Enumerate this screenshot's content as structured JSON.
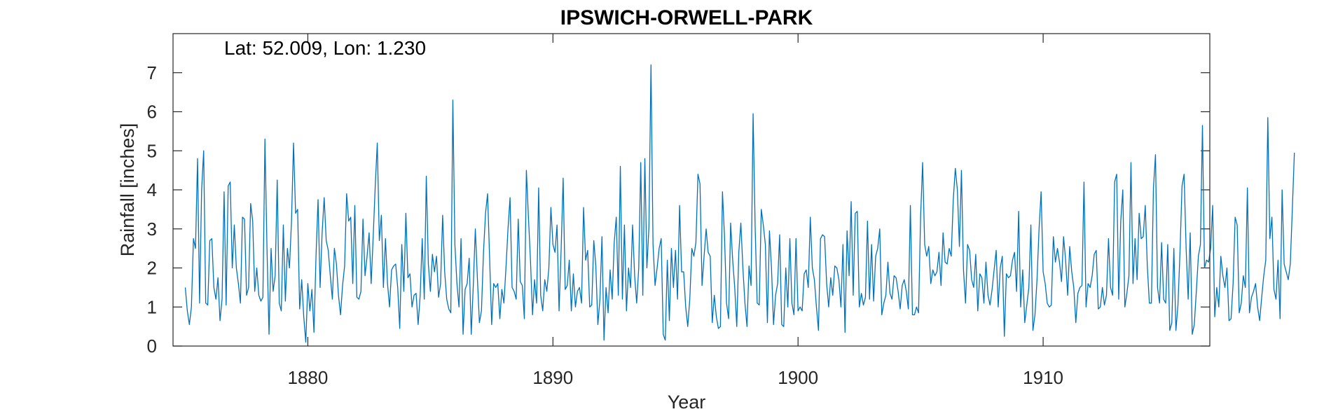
{
  "chart_data": {
    "type": "line",
    "title": "IPSWICH-ORWELL-PARK",
    "annotation": "Lat: 52.009, Lon: 1.230",
    "xlabel": "Year",
    "ylabel": "Rainfall [inches]",
    "xlim": [
      1874.5,
      1916.8
    ],
    "ylim": [
      0,
      8
    ],
    "xticks": [
      1880,
      1890,
      1900,
      1910
    ],
    "xtick_labels": [
      "1880",
      "1890",
      "1900",
      "1910"
    ],
    "yticks": [
      0,
      1,
      2,
      3,
      4,
      5,
      6,
      7
    ],
    "ytick_labels": [
      "0",
      "1",
      "2",
      "3",
      "4",
      "5",
      "6",
      "7"
    ],
    "grid": false,
    "box": true,
    "series": [
      {
        "color": "#0072BD",
        "x_start": 1875.0,
        "x_step": 0.0833333,
        "values": [
          1.5,
          0.9,
          0.55,
          1.0,
          2.75,
          2.5,
          4.8,
          1.1,
          4.0,
          5.0,
          1.1,
          1.05,
          2.7,
          2.75,
          1.5,
          1.2,
          1.75,
          0.65,
          1.2,
          3.95,
          1.05,
          4.1,
          4.2,
          2.0,
          3.1,
          2.0,
          1.6,
          1.1,
          3.3,
          3.25,
          1.3,
          1.5,
          3.65,
          3.2,
          1.4,
          2.0,
          1.3,
          1.15,
          1.25,
          5.3,
          2.5,
          0.3,
          2.5,
          1.4,
          1.8,
          4.25,
          1.1,
          0.9,
          3.1,
          1.15,
          2.5,
          2.0,
          3.2,
          5.2,
          3.4,
          3.5,
          0.95,
          1.7,
          0.75,
          0.1,
          1.6,
          0.9,
          1.45,
          0.35,
          2.3,
          3.75,
          1.5,
          2.9,
          3.8,
          2.7,
          2.45,
          1.8,
          1.2,
          2.5,
          2.1,
          1.3,
          0.8,
          1.55,
          2.05,
          3.9,
          3.2,
          3.3,
          1.6,
          3.6,
          1.25,
          1.2,
          1.4,
          3.25,
          1.8,
          2.3,
          2.9,
          1.6,
          2.8,
          4.1,
          5.2,
          2.7,
          3.35,
          1.5,
          2.75,
          1.6,
          1.0,
          1.95,
          2.05,
          2.1,
          1.5,
          0.45,
          2.6,
          1.4,
          3.4,
          1.75,
          1.85,
          1.0,
          1.3,
          1.35,
          0.55,
          1.3,
          2.75,
          1.2,
          4.35,
          2.1,
          1.4,
          2.35,
          1.9,
          2.3,
          1.25,
          1.6,
          3.35,
          1.9,
          1.2,
          0.95,
          0.85,
          6.3,
          2.6,
          1.6,
          1.0,
          2.75,
          0.3,
          1.45,
          1.6,
          2.25,
          0.3,
          1.55,
          3.0,
          1.75,
          0.6,
          0.9,
          2.4,
          3.4,
          3.9,
          2.25,
          0.55,
          1.6,
          1.5,
          1.6,
          0.7,
          1.45,
          1.1,
          2.0,
          3.0,
          3.8,
          1.5,
          1.4,
          1.2,
          3.25,
          1.65,
          1.55,
          0.7,
          4.5,
          3.3,
          2.2,
          0.8,
          1.7,
          1.1,
          4.05,
          1.3,
          0.9,
          1.7,
          1.4,
          2.0,
          3.55,
          2.6,
          2.4,
          3.1,
          0.9,
          2.45,
          4.3,
          1.45,
          1.55,
          2.2,
          0.9,
          1.85,
          1.0,
          1.4,
          1.5,
          1.1,
          3.55,
          2.2,
          2.45,
          1.0,
          1.05,
          2.7,
          2.05,
          0.55,
          1.2,
          2.8,
          0.15,
          1.5,
          0.85,
          1.95,
          1.2,
          2.65,
          3.3,
          1.3,
          4.6,
          1.2,
          3.1,
          0.9,
          2.0,
          1.5,
          3.1,
          1.8,
          1.1,
          2.0,
          4.7,
          1.3,
          4.8,
          2.0,
          3.05,
          7.2,
          2.6,
          1.55,
          2.0,
          2.5,
          2.75,
          0.3,
          0.15,
          2.2,
          0.65,
          2.5,
          1.5,
          2.45,
          1.2,
          3.6,
          1.9,
          1.9,
          1.0,
          0.5,
          1.2,
          2.5,
          2.3,
          2.65,
          4.4,
          4.15,
          1.55,
          2.3,
          3.0,
          2.4,
          2.3,
          0.6,
          1.3,
          0.75,
          0.45,
          0.5,
          3.95,
          2.8,
          1.1,
          0.7,
          3.15,
          2.2,
          1.5,
          0.5,
          2.4,
          3.15,
          2.0,
          1.1,
          0.5,
          2.05,
          1.55,
          5.95,
          3.05,
          1.1,
          1.05,
          3.5,
          3.1,
          2.6,
          0.6,
          2.95,
          2.0,
          0.55,
          1.3,
          1.6,
          2.85,
          0.55,
          0.5,
          2.0,
          1.0,
          2.75,
          1.1,
          0.8,
          2.75,
          0.9,
          1.0,
          0.9,
          1.85,
          1.95,
          1.5,
          3.3,
          2.0,
          1.7,
          1.0,
          0.4,
          2.75,
          2.85,
          2.8,
          1.6,
          1.0,
          1.75,
          1.3,
          2.05,
          2.0,
          1.7,
          1.0,
          2.6,
          0.35,
          2.95,
          1.8,
          3.7,
          1.3,
          3.4,
          3.45,
          1.0,
          1.35,
          1.05,
          1.25,
          3.2,
          1.2,
          2.6,
          1.15,
          2.3,
          2.5,
          3.0,
          0.8,
          1.1,
          1.3,
          2.15,
          1.35,
          1.2,
          1.8,
          1.75,
          1.4,
          0.95,
          1.55,
          1.7,
          1.4,
          0.95,
          3.6,
          0.8,
          0.8,
          1.0,
          0.85,
          3.3,
          4.7,
          2.6,
          2.3,
          2.55,
          1.6,
          1.95,
          1.8,
          1.9,
          2.4,
          1.55,
          2.9,
          2.15,
          2.1,
          2.5,
          2.3,
          3.75,
          4.55,
          4.0,
          2.55,
          4.5,
          1.95,
          1.1,
          2.6,
          2.45,
          1.7,
          1.5,
          2.35,
          0.9,
          1.85,
          1.75,
          1.1,
          2.15,
          1.3,
          1.05,
          1.45,
          1.95,
          2.45,
          1.0,
          2.0,
          2.3,
          0.25,
          1.85,
          1.75,
          1.8,
          2.2,
          2.4,
          1.4,
          3.45,
          1.0,
          1.95,
          0.6,
          1.05,
          1.5,
          3.1,
          0.4,
          0.8,
          1.7,
          3.0,
          3.95,
          1.9,
          1.6,
          1.1,
          1.0,
          1.05,
          2.8,
          2.15,
          2.5,
          2.15,
          1.65,
          2.8,
          2.2,
          1.3,
          2.55,
          1.9,
          1.5,
          0.6,
          1.35,
          1.5,
          1.55,
          4.2,
          1.0,
          1.6,
          1.5,
          1.8,
          2.35,
          2.45,
          0.95,
          1.0,
          1.5,
          1.05,
          1.3,
          2.75,
          1.5,
          1.3,
          4.2,
          4.4,
          1.2,
          3.2,
          4.0,
          1.0,
          1.35,
          1.8,
          4.7,
          1.6,
          2.75,
          1.7,
          3.4,
          2.75,
          2.8,
          3.6,
          2.05,
          1.1,
          1.1,
          4.05,
          4.9,
          1.5,
          1.1,
          2.65,
          1.2,
          1.1,
          2.6,
          0.4,
          0.6,
          2.5,
          0.4,
          1.05,
          2.4,
          4.1,
          4.4,
          2.5,
          1.2,
          2.9,
          0.3,
          0.55,
          1.4,
          2.3,
          2.6,
          5.65,
          2.0,
          2.2,
          2.15,
          2.5,
          3.6,
          0.75,
          1.5,
          1.0,
          2.3,
          1.8,
          1.5,
          2.0,
          0.65,
          0.7,
          1.6,
          3.3,
          3.1,
          0.85,
          1.1,
          1.8,
          1.5,
          4.05,
          0.85,
          1.25,
          1.4,
          1.6,
          1.0,
          0.65,
          1.25,
          1.8,
          2.2,
          5.85,
          2.75,
          3.3,
          1.45,
          1.2,
          2.2,
          0.7,
          4.0,
          2.1,
          1.9,
          1.7,
          2.1,
          3.5,
          4.95
        ]
      }
    ]
  }
}
